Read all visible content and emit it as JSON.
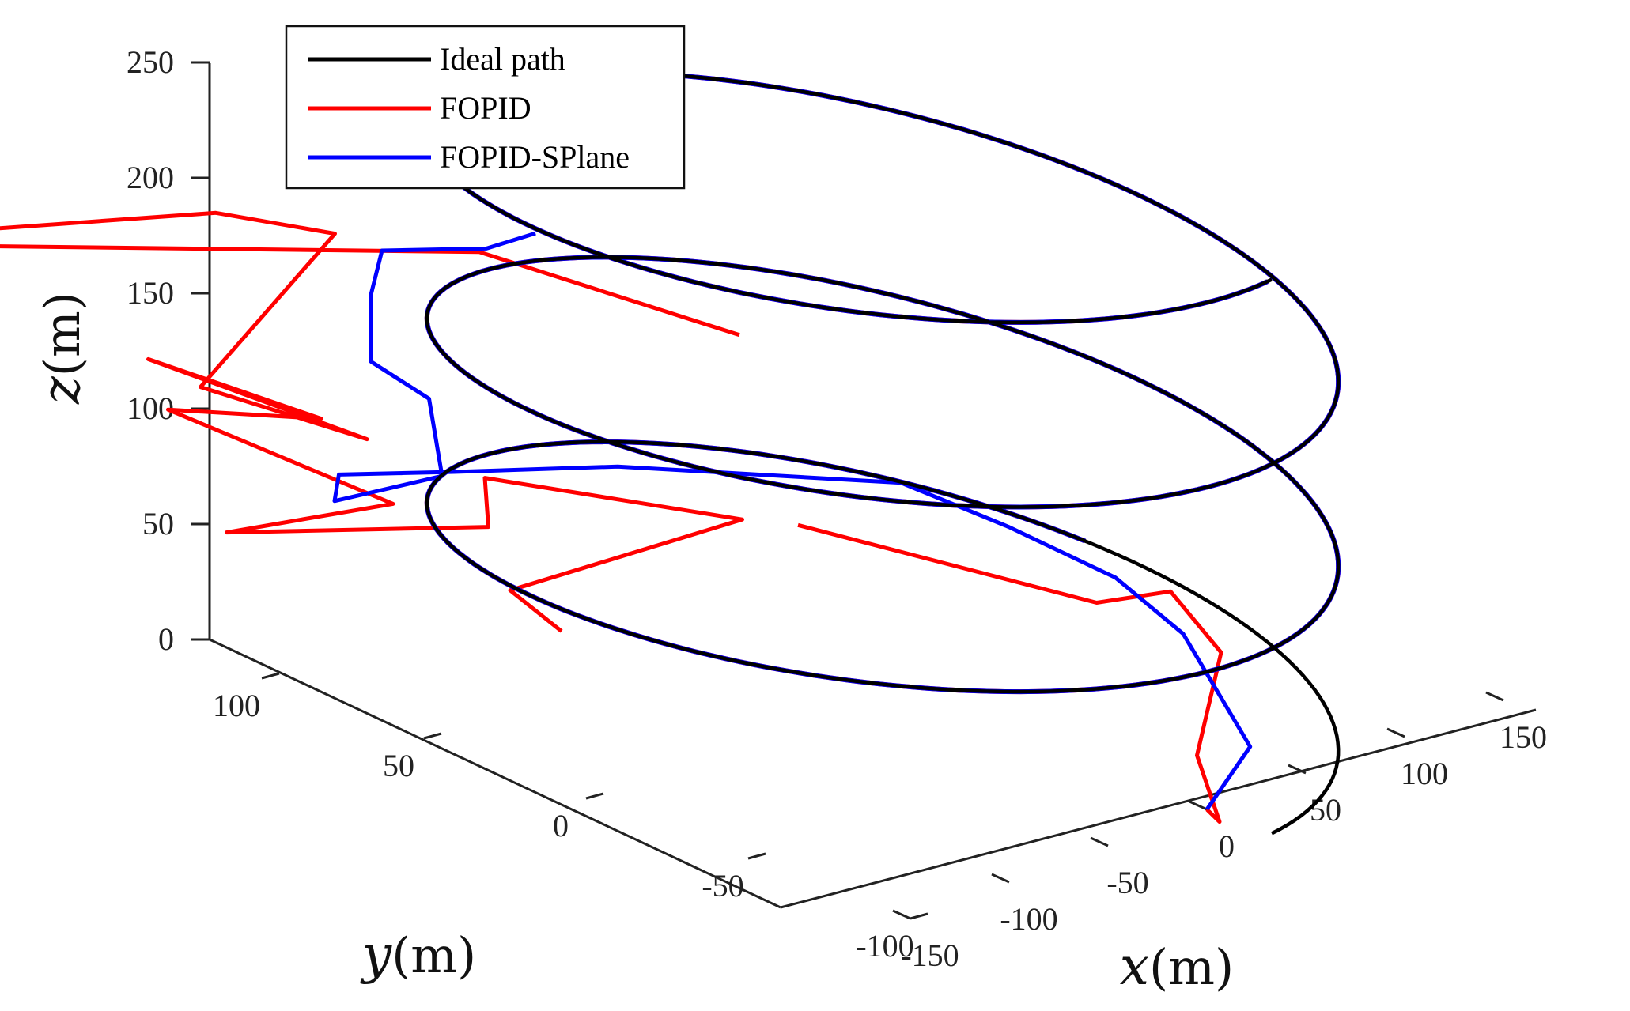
{
  "chart_data": {
    "type": "line",
    "dimensions": "3d",
    "legend_position": "top-left",
    "grid": false,
    "axes": {
      "x": {
        "var": "x",
        "unit": "(m)",
        "range": [
          -150,
          150
        ],
        "ticks": [
          -150,
          -100,
          -50,
          0,
          50,
          100,
          150
        ],
        "tick_labels": [
          "-150",
          "-100",
          "-50",
          "0",
          "50",
          "100",
          "150"
        ]
      },
      "y": {
        "var": "y",
        "unit": "(m)",
        "range": [
          -100,
          100
        ],
        "ticks": [
          -100,
          -50,
          0,
          50,
          100
        ],
        "tick_labels": [
          "-100",
          "-50",
          "0",
          "50",
          "100"
        ]
      },
      "z": {
        "var": "z",
        "unit": "(m)",
        "range": [
          0,
          250
        ],
        "ticks": [
          0,
          50,
          100,
          150,
          200,
          250
        ],
        "tick_labels": [
          "0",
          "50",
          "100",
          "150",
          "200",
          "250"
        ]
      }
    },
    "series": [
      {
        "name": "Ideal path",
        "color": "#000000",
        "helix": {
          "radius": 120,
          "center": [
            0,
            0
          ],
          "z_start": 0,
          "z_end": 240,
          "turns": 3
        }
      },
      {
        "name": "FOPID",
        "color": "#ff0000",
        "start": [
          0,
          -100,
          0
        ],
        "approach": [
          [
            -10,
            -110,
            3
          ],
          [
            -5,
            -100,
            25
          ],
          [
            40,
            -80,
            45
          ],
          [
            80,
            -40,
            38
          ],
          [
            82,
            -16,
            20
          ],
          [
            72,
            70,
            12
          ]
        ],
        "transient": [
          [
            -105,
            35,
            40
          ],
          [
            -90,
            60,
            40
          ],
          [
            -30,
            25,
            70
          ],
          [
            -70,
            80,
            72
          ],
          [
            -60,
            85,
            45
          ],
          [
            -135,
            120,
            48
          ],
          [
            -100,
            90,
            65
          ],
          [
            -140,
            135,
            95
          ],
          [
            -120,
            100,
            103
          ],
          [
            -150,
            135,
            120
          ],
          [
            -105,
            95,
            92
          ],
          [
            -140,
            125,
            110
          ],
          [
            -72,
            125,
            155
          ],
          [
            -88,
            152,
            155
          ],
          [
            -180,
            230,
            130
          ],
          [
            -40,
            100,
            150
          ],
          [
            -15,
            35,
            140
          ]
        ],
        "helix_from_angle_deg": 95
      },
      {
        "name": "FOPID-SPlane",
        "color": "#0000ff",
        "start": [
          0,
          -100,
          0
        ],
        "approach": [
          [
            35,
            -92,
            12
          ],
          [
            70,
            -50,
            28
          ],
          [
            85,
            -20,
            32
          ],
          [
            80,
            10,
            40
          ],
          [
            75,
            40,
            45
          ],
          [
            30,
            100,
            35
          ],
          [
            -20,
            120,
            38
          ],
          [
            -70,
            125,
            50
          ],
          [
            -105,
            105,
            60
          ],
          [
            -108,
            70,
            90
          ],
          [
            -90,
            85,
            110
          ],
          [
            -103,
            95,
            125
          ],
          [
            -62,
            120,
            128
          ],
          [
            -40,
            130,
            135
          ],
          [
            -20,
            110,
            140
          ],
          [
            -5,
            104,
            145
          ]
        ],
        "helix_from_angle_deg": 95
      }
    ]
  }
}
